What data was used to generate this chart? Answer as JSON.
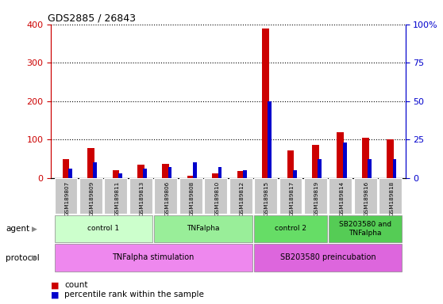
{
  "title": "GDS2885 / 26843",
  "samples": [
    "GSM189807",
    "GSM189809",
    "GSM189811",
    "GSM189813",
    "GSM189806",
    "GSM189808",
    "GSM189810",
    "GSM189812",
    "GSM189815",
    "GSM189817",
    "GSM189819",
    "GSM189814",
    "GSM189816",
    "GSM189818"
  ],
  "count_values": [
    48,
    78,
    20,
    35,
    37,
    5,
    12,
    17,
    390,
    72,
    85,
    118,
    105,
    100
  ],
  "percentile_values": [
    6,
    10,
    3,
    6,
    7,
    10,
    7,
    5,
    50,
    5,
    12,
    23,
    12,
    12
  ],
  "red_color": "#cc0000",
  "blue_color": "#0000cc",
  "ylim_left": [
    0,
    400
  ],
  "ylim_right": [
    0,
    100
  ],
  "yticks_left": [
    0,
    100,
    200,
    300,
    400
  ],
  "yticks_right": [
    0,
    25,
    50,
    75,
    100
  ],
  "ytick_labels_right": [
    "0",
    "25",
    "50",
    "75",
    "100%"
  ],
  "agent_groups": [
    {
      "label": "control 1",
      "start": 0,
      "end": 3,
      "color": "#ccffcc"
    },
    {
      "label": "TNFalpha",
      "start": 4,
      "end": 7,
      "color": "#99ee99"
    },
    {
      "label": "control 2",
      "start": 8,
      "end": 10,
      "color": "#66dd66"
    },
    {
      "label": "SB203580 and\nTNFalpha",
      "start": 11,
      "end": 13,
      "color": "#55cc55"
    }
  ],
  "protocol_groups": [
    {
      "label": "TNFalpha stimulation",
      "start": 0,
      "end": 7,
      "color": "#ee88ee"
    },
    {
      "label": "SB203580 preincubation",
      "start": 8,
      "end": 13,
      "color": "#dd66dd"
    }
  ],
  "agent_label": "agent",
  "protocol_label": "protocol",
  "legend_count": "count",
  "legend_percentile": "percentile rank within the sample",
  "tick_color_left": "#cc0000",
  "tick_color_right": "#0000cc",
  "background_color": "#ffffff",
  "bar_area_bg": "#ffffff"
}
